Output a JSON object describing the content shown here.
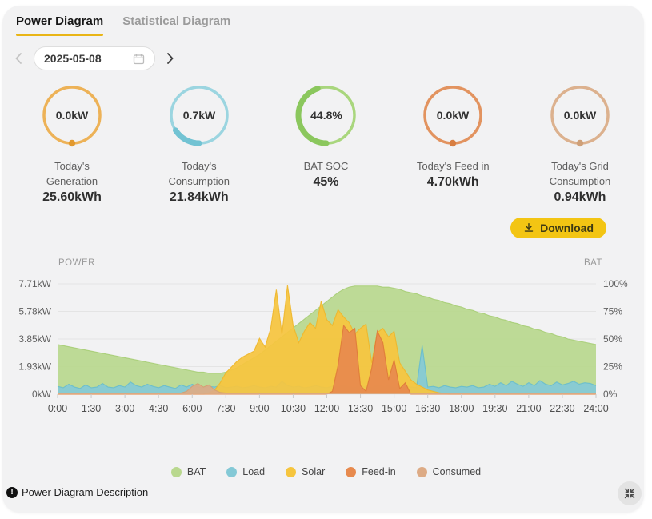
{
  "tabs": {
    "active": "Power Diagram",
    "inactive": "Statistical Diagram"
  },
  "date_picker": {
    "value": "2025-05-08"
  },
  "download_label": "Download",
  "gauges": [
    {
      "value": "0.0kW",
      "label_lines": [
        "Today's",
        "Generation"
      ],
      "total": "25.60kWh",
      "ring_color": "#edb257",
      "arc_color": "#e2992e",
      "ring_fill_pct": 0,
      "dot": true
    },
    {
      "value": "0.7kW",
      "label_lines": [
        "Today's",
        "Consumption"
      ],
      "total": "21.84kWh",
      "ring_color": "#9bd5e0",
      "arc_color": "#72c3d3",
      "ring_fill_pct": 16,
      "dot": false
    },
    {
      "value": "44.8%",
      "label_lines": [
        "BAT SOC"
      ],
      "total": "45%",
      "ring_color": "#a9d67d",
      "arc_color": "#8bc75d",
      "ring_fill_pct": 45,
      "dot": false
    },
    {
      "value": "0.0kW",
      "label_lines": [
        "Today's Feed in"
      ],
      "total": "4.70kWh",
      "ring_color": "#e2935f",
      "arc_color": "#d87e41",
      "ring_fill_pct": 0,
      "dot": true
    },
    {
      "value": "0.0kW",
      "label_lines": [
        "Today's Grid",
        "Consumption"
      ],
      "total": "0.94kWh",
      "ring_color": "#dcb18e",
      "arc_color": "#cfa078",
      "ring_fill_pct": 0,
      "dot": true
    }
  ],
  "footer": {
    "description_label": "Power Diagram Description"
  },
  "chart_data": {
    "type": "area",
    "title_left": "POWER",
    "title_right": "BAT",
    "grid": true,
    "legend_position": "bottom",
    "sample_interval_hours": 0.25,
    "x_tick_labels": [
      "0:00",
      "1:30",
      "3:00",
      "4:30",
      "6:00",
      "7:30",
      "9:00",
      "10:30",
      "12:00",
      "13:30",
      "15:00",
      "16:30",
      "18:00",
      "19:30",
      "21:00",
      "22:30",
      "24:00"
    ],
    "left_axis": {
      "label": "POWER",
      "ticks_bottom_to_top": [
        "0kW",
        "1.93kW",
        "3.85kW",
        "5.78kW",
        "7.71kW"
      ],
      "max": 7.71,
      "unit": "kW"
    },
    "right_axis": {
      "label": "BAT",
      "ticks_bottom_to_top": [
        "0%",
        "25%",
        "50%",
        "75%",
        "100%"
      ],
      "max": 100,
      "unit": "%"
    },
    "series": [
      {
        "name": "BAT",
        "axis": "percent",
        "color": "#b9d88e",
        "stroke": "#a6cd74",
        "values": [
          45,
          44,
          43,
          42,
          41,
          40,
          39,
          38,
          37,
          36,
          35,
          34,
          33,
          32,
          31,
          30,
          29,
          28,
          27,
          26,
          25,
          24,
          23,
          22,
          21,
          20,
          20,
          19,
          19,
          19,
          20,
          22,
          24,
          27,
          30,
          33,
          36,
          40,
          44,
          48,
          52,
          56,
          60,
          64,
          68,
          72,
          76,
          80,
          84,
          88,
          92,
          95,
          97,
          98,
          98,
          98,
          98,
          98,
          97,
          97,
          96,
          95,
          93,
          92,
          91,
          89,
          88,
          86,
          85,
          83,
          82,
          80,
          79,
          77,
          76,
          74,
          73,
          71,
          70,
          68,
          67,
          65,
          64,
          62,
          61,
          59,
          58,
          56,
          55,
          53,
          52,
          50,
          49,
          48,
          47,
          46,
          45
        ]
      },
      {
        "name": "Load",
        "axis": "kw",
        "color": "#84c9d6",
        "stroke": "#67bccd",
        "values": [
          0.55,
          0.45,
          0.7,
          0.5,
          0.4,
          0.65,
          0.45,
          0.5,
          0.75,
          0.5,
          0.45,
          0.6,
          0.5,
          0.85,
          0.6,
          0.5,
          0.7,
          0.55,
          0.45,
          0.6,
          0.5,
          0.4,
          0.65,
          0.5,
          0.7,
          0.5,
          0.45,
          0.55,
          0.5,
          0.6,
          0.45,
          0.5,
          0.55,
          0.45,
          0.5,
          0.6,
          0.5,
          0.45,
          0.55,
          0.5,
          0.9,
          0.6,
          0.5,
          0.55,
          0.45,
          0.5,
          0.6,
          0.5,
          0.45,
          0.55,
          0.5,
          0.6,
          0.5,
          0.45,
          0.55,
          0.5,
          0.45,
          0.6,
          0.5,
          0.55,
          0.45,
          0.5,
          0.55,
          0.5,
          0.45,
          3.4,
          0.5,
          0.55,
          0.45,
          0.6,
          0.5,
          0.45,
          0.55,
          0.5,
          0.6,
          0.45,
          0.5,
          0.7,
          0.55,
          0.8,
          0.6,
          0.9,
          0.7,
          0.55,
          0.8,
          0.6,
          0.95,
          0.7,
          0.6,
          0.85,
          0.65,
          0.75,
          0.9,
          0.7,
          0.8,
          0.75,
          0.6
        ]
      },
      {
        "name": "Solar",
        "axis": "kw",
        "color": "#f6c53e",
        "stroke": "#eeb62a",
        "values": [
          0,
          0,
          0,
          0,
          0,
          0,
          0,
          0,
          0,
          0,
          0,
          0,
          0,
          0,
          0,
          0,
          0,
          0,
          0,
          0,
          0,
          0,
          0,
          0,
          0,
          0,
          0,
          0.1,
          0.3,
          0.8,
          1.5,
          1.9,
          2.3,
          2.6,
          2.8,
          3.0,
          3.9,
          3.3,
          4.6,
          7.3,
          4.2,
          7.6,
          4.8,
          3.6,
          4.4,
          5.0,
          4.6,
          6.5,
          5.2,
          4.8,
          5.9,
          5.4,
          5.0,
          4.2,
          4.6,
          4.9,
          2.2,
          4.3,
          4.6,
          4.0,
          4.4,
          2.2,
          1.6,
          1.0,
          0.7,
          0.5,
          0.3,
          0.2,
          0.1,
          0.05,
          0,
          0,
          0,
          0,
          0,
          0,
          0,
          0,
          0,
          0,
          0,
          0,
          0,
          0,
          0,
          0,
          0,
          0,
          0,
          0,
          0,
          0,
          0,
          0,
          0,
          0,
          0
        ]
      },
      {
        "name": "Feed-in",
        "axis": "kw",
        "color": "#e78a4e",
        "stroke": "#df7a38",
        "values": [
          0,
          0,
          0,
          0,
          0,
          0,
          0,
          0,
          0,
          0,
          0,
          0,
          0,
          0,
          0,
          0,
          0,
          0,
          0,
          0,
          0,
          0,
          0,
          0,
          0,
          0,
          0,
          0,
          0,
          0,
          0,
          0,
          0,
          0,
          0,
          0,
          0,
          0,
          0,
          0,
          0,
          0,
          0,
          0,
          0,
          0,
          0,
          0,
          0,
          0.2,
          2.0,
          4.8,
          4.3,
          4.6,
          0.6,
          0.2,
          1.8,
          4.4,
          3.6,
          1.0,
          2.4,
          0.4,
          0.8,
          0,
          0,
          0,
          0,
          0,
          0,
          0,
          0,
          0,
          0,
          0,
          0,
          0,
          0,
          0,
          0,
          0,
          0,
          0,
          0,
          0,
          0,
          0,
          0,
          0,
          0,
          0,
          0,
          0,
          0,
          0,
          0,
          0,
          0
        ]
      },
      {
        "name": "Consumed",
        "axis": "kw",
        "color": "#ddab85",
        "stroke": "#d49e72",
        "values": [
          0.08,
          0.08,
          0.08,
          0.08,
          0.08,
          0.08,
          0.08,
          0.08,
          0.08,
          0.08,
          0.08,
          0.08,
          0.08,
          0.08,
          0.08,
          0.08,
          0.08,
          0.08,
          0.08,
          0.08,
          0.08,
          0.08,
          0.08,
          0.2,
          0.55,
          0.75,
          0.5,
          0.65,
          0.3,
          0.12,
          0.08,
          0.08,
          0.08,
          0.08,
          0.08,
          0.08,
          0.08,
          0.08,
          0.08,
          0.08,
          0.08,
          0.08,
          0.08,
          0.08,
          0.08,
          0.08,
          0.08,
          0.08,
          0.08,
          0.08,
          0.08,
          0.08,
          0.08,
          0.08,
          0.08,
          0.08,
          0.08,
          0.08,
          0.08,
          0.08,
          0.08,
          0.08,
          0.08,
          0.08,
          0.08,
          0.08,
          0.08,
          0.08,
          0.08,
          0.08,
          0.08,
          0.08,
          0.08,
          0.08,
          0.08,
          0.08,
          0.08,
          0.08,
          0.08,
          0.08,
          0.08,
          0.08,
          0.08,
          0.08,
          0.08,
          0.08,
          0.08,
          0.08,
          0.08,
          0.08,
          0.08,
          0.08,
          0.08,
          0.08,
          0.08,
          0.08,
          0.08
        ]
      }
    ]
  }
}
